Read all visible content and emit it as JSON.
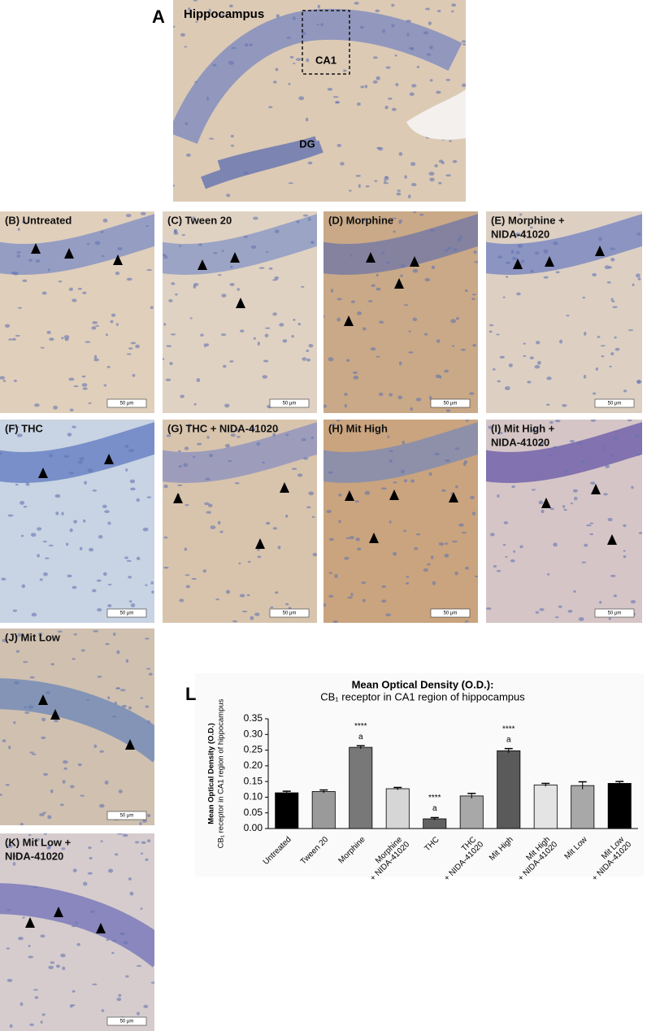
{
  "figure": {
    "panel_a": {
      "letter": "A",
      "title": "Hippocampus",
      "region_box": "CA1",
      "region": "DG"
    },
    "panels": [
      {
        "label": [
          "(B) Untreated"
        ]
      },
      {
        "label": [
          "(C) Tween 20"
        ]
      },
      {
        "label": [
          "(D) Morphine"
        ]
      },
      {
        "label": [
          "(E) Morphine +",
          "NIDA-41020"
        ]
      },
      {
        "label": [
          "(F) THC"
        ]
      },
      {
        "label": [
          "(G) THC + NIDA-41020"
        ]
      },
      {
        "label": [
          "(H) Mit High"
        ]
      },
      {
        "label": [
          "(I) Mit High +",
          "NIDA-41020"
        ]
      },
      {
        "label": [
          "(J) Mit Low"
        ]
      },
      {
        "label": [
          "(K) Mit Low +",
          "NIDA-41020"
        ]
      }
    ],
    "scale_bar": "50 μm",
    "chart_letter": "L"
  },
  "chart_data": {
    "type": "bar",
    "title": "Mean Optical Density (O.D.):",
    "subtitle": "CB₁ receptor in CA1 region of hippocampus",
    "ylabel": [
      "Mean Optical Density (O.D.)",
      "CB₁ receptor in CA1 region of hippocampus"
    ],
    "categories": [
      [
        "Untreated"
      ],
      [
        "Tween 20"
      ],
      [
        "Morphine"
      ],
      [
        "Morphine",
        "+ NIDA-41020"
      ],
      [
        "THC"
      ],
      [
        "THC",
        "+ NIDA-41020"
      ],
      [
        "Mit High"
      ],
      [
        "Mit High",
        "+ NIDA-41020"
      ],
      [
        "Mit Low"
      ],
      [
        "Mit Low",
        "+ NIDA-41020"
      ]
    ],
    "values": [
      0.114,
      0.118,
      0.259,
      0.127,
      0.031,
      0.104,
      0.248,
      0.139,
      0.137,
      0.144
    ],
    "errors": [
      0.005,
      0.005,
      0.005,
      0.004,
      0.004,
      0.008,
      0.007,
      0.005,
      0.012,
      0.006
    ],
    "colors": [
      "#000000",
      "#9a9a9a",
      "#787878",
      "#d6d6d6",
      "#626262",
      "#a8a8a8",
      "#5a5a5a",
      "#e4e4e4",
      "#a8a8a8",
      "#000000"
    ],
    "significance": [
      null,
      null,
      "****",
      null,
      "****",
      null,
      "****",
      null,
      null,
      null
    ],
    "letters": [
      null,
      null,
      "a",
      null,
      "a",
      null,
      "a",
      null,
      null,
      null
    ],
    "ylim": [
      0,
      0.35
    ],
    "yticks": [
      {
        "value": 0,
        "label": "0.00"
      },
      {
        "value": 0.05,
        "label": "0.05"
      },
      {
        "value": 0.1,
        "label": "0.10"
      },
      {
        "value": 0.15,
        "label": "0.15"
      },
      {
        "value": 0.2,
        "label": "0.20"
      },
      {
        "value": 0.25,
        "label": "0.25"
      },
      {
        "value": 0.3,
        "label": "0.30"
      },
      {
        "value": 0.35,
        "label": "0.35"
      }
    ],
    "grid": false
  }
}
